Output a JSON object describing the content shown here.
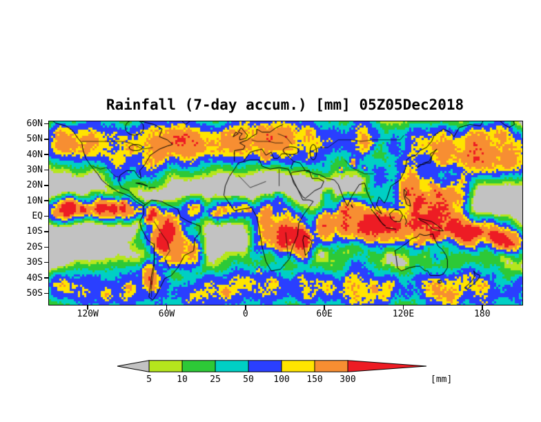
{
  "chart_data": {
    "type": "heatmap",
    "title": "Rainfall (7-day accum.) [mm] 05Z05Dec2018",
    "variable": "Rainfall (7-day accum.)",
    "units": "mm",
    "valid_time_label": "05Z05Dec2018",
    "map": {
      "projection": "equirectangular",
      "lon_range": [
        -150,
        210
      ],
      "lat_range": [
        -57,
        62
      ],
      "background_color": "#c2c2c2",
      "coastline_color": "#000000",
      "grid": false
    },
    "y_axis": {
      "tick_labels": [
        "60N",
        "50N",
        "40N",
        "30N",
        "20N",
        "10N",
        "EQ",
        "10S",
        "20S",
        "30S",
        "40S",
        "50S"
      ],
      "tick_values": [
        60,
        50,
        40,
        30,
        20,
        10,
        0,
        -10,
        -20,
        -30,
        -40,
        -50
      ]
    },
    "x_axis": {
      "tick_labels": [
        "120W",
        "60W",
        "0",
        "60E",
        "120E",
        "180"
      ],
      "tick_values": [
        -120,
        -60,
        0,
        60,
        120,
        180
      ]
    },
    "colorbar": {
      "position": "bottom",
      "levels": [
        "5",
        "10",
        "25",
        "50",
        "100",
        "150",
        "300"
      ],
      "level_values": [
        5,
        10,
        25,
        50,
        100,
        150,
        300
      ],
      "segment_colors": [
        "#c2c2c2",
        "#b5e61d",
        "#2dc937",
        "#00cfc4",
        "#2a3fff",
        "#ffe400",
        "#f78e32",
        "#ed1c24"
      ],
      "units_label": "[mm]"
    }
  }
}
